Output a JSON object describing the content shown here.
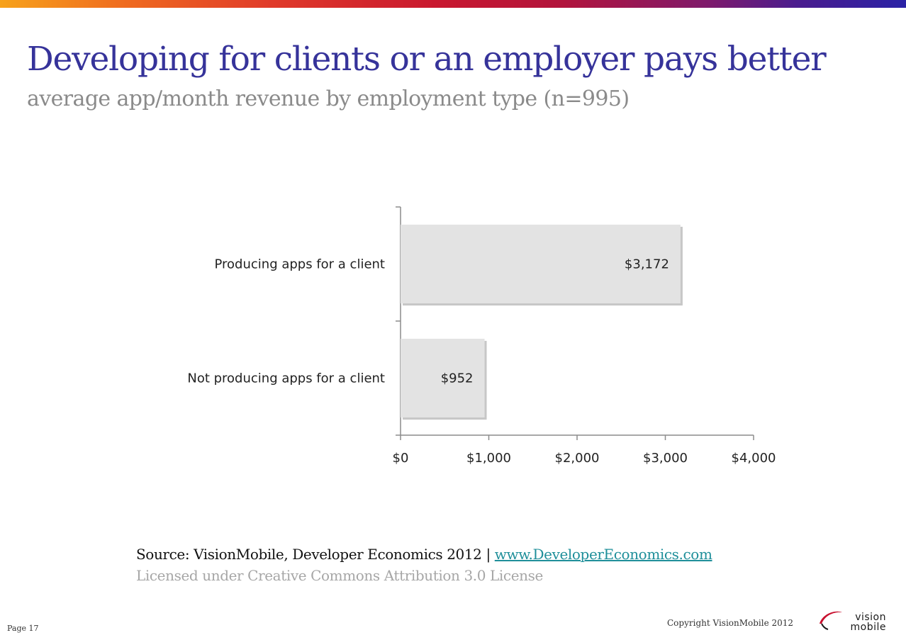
{
  "slide": {
    "title": "Developing for clients or an employer pays better",
    "subtitle": "average app/month revenue by employment type (n=995)",
    "source_text": "Source: VisionMobile, Developer Economics 2012 | ",
    "source_link": "www.DeveloperEconomics.com",
    "license": "Licensed under Creative Commons Attribution 3.0 License",
    "page": "Page 17",
    "copyright": "Copyright VisionMobile 2012",
    "logo": {
      "line1": "vision",
      "line2": "mobile"
    }
  },
  "colors": {
    "title": "#36339a",
    "bar_fill": "#e3e3e3",
    "link": "#1f8f9a"
  },
  "chart_data": {
    "type": "bar",
    "orientation": "horizontal",
    "categories": [
      "Producing apps for a client",
      "Not producing apps for a client"
    ],
    "values": [
      3172,
      952
    ],
    "value_labels": [
      "$3,172",
      "$952"
    ],
    "xlim": [
      0,
      4000
    ],
    "xticks": [
      0,
      1000,
      2000,
      3000,
      4000
    ],
    "xtick_labels": [
      "$0",
      "$1,000",
      "$2,000",
      "$3,000",
      "$4,000"
    ],
    "grid": false,
    "legend": "none"
  }
}
